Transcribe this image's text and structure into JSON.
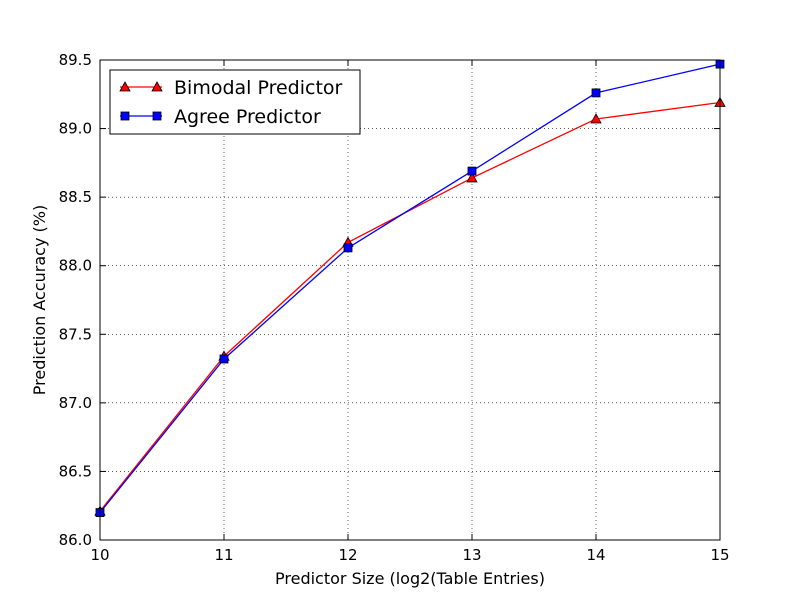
{
  "chart_data": {
    "type": "line",
    "title": "",
    "xlabel": "Predictor Size (log2(Table Entries)",
    "ylabel": "Prediction Accuracy (%)",
    "x": [
      10,
      11,
      12,
      13,
      14,
      15
    ],
    "xlim": [
      10,
      15
    ],
    "ylim": [
      86.0,
      89.5
    ],
    "xticks": [
      "10",
      "11",
      "12",
      "13",
      "14",
      "15"
    ],
    "yticks": [
      "86.0",
      "86.5",
      "87.0",
      "87.5",
      "88.0",
      "88.5",
      "89.0",
      "89.5"
    ],
    "grid": true,
    "legend_position": "top-left",
    "series": [
      {
        "name": "Bimodal Predictor",
        "color": "#ff0000",
        "marker": "triangle",
        "values": [
          86.21,
          87.34,
          88.17,
          88.64,
          89.07,
          89.19
        ]
      },
      {
        "name": "Agree Predictor",
        "color": "#0000ff",
        "marker": "square",
        "values": [
          86.2,
          87.32,
          88.13,
          88.69,
          89.26,
          89.47
        ]
      }
    ]
  }
}
